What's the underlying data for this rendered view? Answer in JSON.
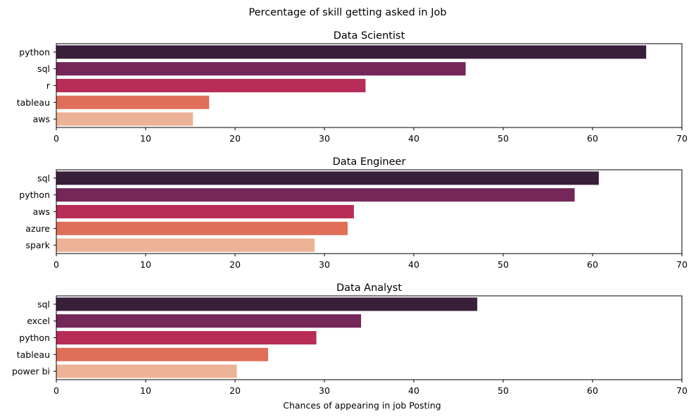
{
  "suptitle": "Percentage of skill getting asked in Job",
  "colors": [
    "#3a1f3a",
    "#742758",
    "#b82d58",
    "#df6f59",
    "#ecb295"
  ],
  "chart_data": [
    {
      "type": "bar",
      "orientation": "horizontal",
      "title": "Data Scientist",
      "categories": [
        "python",
        "sql",
        "r",
        "tableau",
        "aws"
      ],
      "values": [
        66.0,
        45.8,
        34.6,
        17.1,
        15.3
      ],
      "xlim": [
        0,
        70
      ],
      "xticks": [
        "0",
        "10",
        "20",
        "30",
        "40",
        "50",
        "60",
        "70"
      ],
      "xlabel": ""
    },
    {
      "type": "bar",
      "orientation": "horizontal",
      "title": "Data Engineer",
      "categories": [
        "sql",
        "python",
        "aws",
        "azure",
        "spark"
      ],
      "values": [
        60.7,
        58.0,
        33.3,
        32.6,
        28.9
      ],
      "xlim": [
        0,
        70
      ],
      "xticks": [
        "0",
        "10",
        "20",
        "30",
        "40",
        "50",
        "60",
        "70"
      ],
      "xlabel": ""
    },
    {
      "type": "bar",
      "orientation": "horizontal",
      "title": "Data Analyst",
      "categories": [
        "sql",
        "excel",
        "python",
        "tableau",
        "power bi"
      ],
      "values": [
        47.1,
        34.1,
        29.1,
        23.7,
        20.2
      ],
      "xlim": [
        0,
        70
      ],
      "xticks": [
        "0",
        "10",
        "20",
        "30",
        "40",
        "50",
        "60",
        "70"
      ],
      "xlabel": "Chances of appearing in job Posting"
    }
  ]
}
